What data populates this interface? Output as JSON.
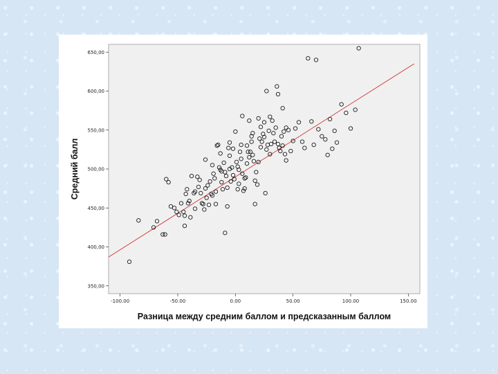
{
  "chart_data": {
    "type": "scatter",
    "title": "",
    "xlabel": "Разница между средним баллом и предсказанным баллом",
    "ylabel": "Средний балл",
    "xlim": [
      -110,
      160
    ],
    "ylim": [
      340,
      660
    ],
    "x_ticks": [
      {
        "value": -100,
        "label": "-100.00"
      },
      {
        "value": -50,
        "label": "-50.00"
      },
      {
        "value": 0,
        "label": "0.00"
      },
      {
        "value": 50,
        "label": "50.00"
      },
      {
        "value": 100,
        "label": "100.00"
      },
      {
        "value": 150,
        "label": "150.00"
      }
    ],
    "y_ticks": [
      {
        "value": 350,
        "label": "350,00"
      },
      {
        "value": 400,
        "label": "400,00"
      },
      {
        "value": 450,
        "label": "450,00"
      },
      {
        "value": 500,
        "label": "500,00"
      },
      {
        "value": 550,
        "label": "550,00"
      },
      {
        "value": 600,
        "label": "600,00"
      },
      {
        "value": 650,
        "label": "650,00"
      }
    ],
    "fit_line": {
      "x1": -110,
      "y1": 387,
      "x2": 155,
      "y2": 635,
      "color": "#cc3333"
    },
    "colors": {
      "plot_bg": "#f0f0f0",
      "point_stroke": "#111111",
      "line": "#cc3333"
    },
    "points": [
      [
        -92,
        381
      ],
      [
        -84,
        434
      ],
      [
        -71,
        425
      ],
      [
        -68,
        433
      ],
      [
        -63,
        416
      ],
      [
        -61,
        416
      ],
      [
        -60,
        487
      ],
      [
        -58,
        483
      ],
      [
        -56,
        452
      ],
      [
        -53,
        450
      ],
      [
        -51,
        445
      ],
      [
        -49,
        441
      ],
      [
        -47,
        456
      ],
      [
        -45,
        445
      ],
      [
        -44,
        440
      ],
      [
        -44,
        427
      ],
      [
        -43,
        468
      ],
      [
        -42,
        474
      ],
      [
        -41,
        456
      ],
      [
        -40,
        459
      ],
      [
        -39,
        438
      ],
      [
        -38,
        491
      ],
      [
        -35,
        471
      ],
      [
        -35,
        449
      ],
      [
        -33,
        490
      ],
      [
        -32,
        477
      ],
      [
        -31,
        486
      ],
      [
        -30,
        469
      ],
      [
        -29,
        456
      ],
      [
        -28,
        455
      ],
      [
        -27,
        448
      ],
      [
        -26,
        475
      ],
      [
        -25,
        463
      ],
      [
        -24,
        479
      ],
      [
        -23,
        454
      ],
      [
        -22,
        484
      ],
      [
        -21,
        468
      ],
      [
        -20,
        466
      ],
      [
        -19,
        494
      ],
      [
        -18,
        488
      ],
      [
        -17,
        471
      ],
      [
        -17,
        455
      ],
      [
        -16,
        530
      ],
      [
        -15,
        531
      ],
      [
        -14,
        502
      ],
      [
        -13,
        499
      ],
      [
        -12,
        483
      ],
      [
        -11,
        474
      ],
      [
        -10,
        508
      ],
      [
        -9,
        418
      ],
      [
        -9,
        496
      ],
      [
        -8,
        491
      ],
      [
        -7,
        476
      ],
      [
        -6,
        527
      ],
      [
        -5,
        534
      ],
      [
        -5,
        517
      ],
      [
        -4,
        484
      ],
      [
        -3,
        502
      ],
      [
        -2,
        492
      ],
      [
        -1,
        487
      ],
      [
        0,
        548
      ],
      [
        1,
        509
      ],
      [
        2,
        474
      ],
      [
        3,
        499
      ],
      [
        4,
        522
      ],
      [
        5,
        513
      ],
      [
        5,
        531
      ],
      [
        6,
        494
      ],
      [
        7,
        472
      ],
      [
        8,
        475
      ],
      [
        9,
        489
      ],
      [
        10,
        507
      ],
      [
        11,
        522
      ],
      [
        12,
        515
      ],
      [
        13,
        522
      ],
      [
        14,
        542
      ],
      [
        15,
        518
      ],
      [
        16,
        510
      ],
      [
        17,
        485
      ],
      [
        18,
        496
      ],
      [
        19,
        480
      ],
      [
        20,
        509
      ],
      [
        21,
        539
      ],
      [
        22,
        528
      ],
      [
        23,
        535
      ],
      [
        24,
        545
      ],
      [
        25,
        541
      ],
      [
        26,
        469
      ],
      [
        27,
        525
      ],
      [
        28,
        531
      ],
      [
        29,
        549
      ],
      [
        30,
        519
      ],
      [
        31,
        532
      ],
      [
        32,
        562
      ],
      [
        34,
        535
      ],
      [
        35,
        553
      ],
      [
        36,
        606
      ],
      [
        37,
        532
      ],
      [
        38,
        527
      ],
      [
        39,
        523
      ],
      [
        40,
        542
      ],
      [
        41,
        530
      ],
      [
        42,
        548
      ],
      [
        43,
        519
      ],
      [
        44,
        511
      ],
      [
        46,
        550
      ],
      [
        48,
        523
      ],
      [
        50,
        536
      ],
      [
        52,
        552
      ],
      [
        55,
        560
      ],
      [
        58,
        535
      ],
      [
        60,
        527
      ],
      [
        63,
        642
      ],
      [
        66,
        561
      ],
      [
        68,
        531
      ],
      [
        70,
        640
      ],
      [
        72,
        551
      ],
      [
        75,
        542
      ],
      [
        78,
        538
      ],
      [
        80,
        518
      ],
      [
        82,
        564
      ],
      [
        84,
        526
      ],
      [
        86,
        549
      ],
      [
        88,
        534
      ],
      [
        92,
        583
      ],
      [
        96,
        572
      ],
      [
        100,
        552
      ],
      [
        104,
        576
      ],
      [
        107,
        655
      ],
      [
        6,
        568
      ],
      [
        22,
        554
      ],
      [
        14,
        535
      ],
      [
        -2,
        526
      ],
      [
        30,
        567
      ],
      [
        41,
        578
      ],
      [
        27,
        600
      ],
      [
        37,
        596
      ],
      [
        12,
        562
      ],
      [
        2,
        503
      ],
      [
        -20,
        505
      ],
      [
        -26,
        512
      ],
      [
        -36,
        469
      ],
      [
        -13,
        520
      ],
      [
        20,
        565
      ],
      [
        33,
        546
      ],
      [
        44,
        553
      ],
      [
        -7,
        452
      ],
      [
        17,
        455
      ],
      [
        10,
        530
      ],
      [
        -5,
        500
      ],
      [
        3,
        481
      ],
      [
        8,
        488
      ],
      [
        -12,
        497
      ],
      [
        25,
        560
      ],
      [
        15,
        546
      ]
    ]
  }
}
